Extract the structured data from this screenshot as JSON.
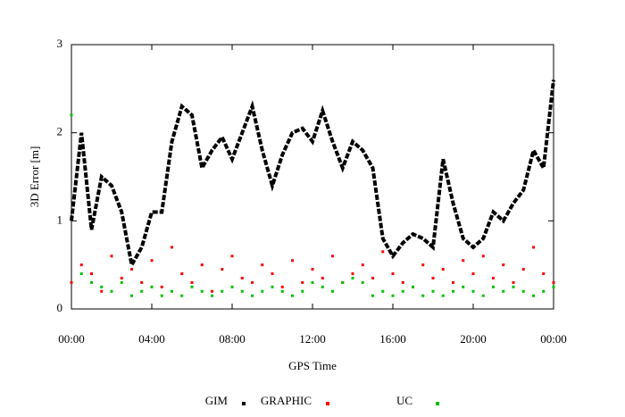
{
  "chart_data": {
    "type": "scatter",
    "xlabel": "GPS Time",
    "ylabel": "3D Error [m]",
    "x": [
      0,
      0.5,
      1,
      1.5,
      2,
      2.5,
      3,
      3.5,
      4,
      4.5,
      5,
      5.5,
      6,
      6.5,
      7,
      7.5,
      8,
      8.5,
      9,
      9.5,
      10,
      10.5,
      11,
      11.5,
      12,
      12.5,
      13,
      13.5,
      14,
      14.5,
      15,
      15.5,
      16,
      16.5,
      17,
      17.5,
      18,
      18.5,
      19,
      19.5,
      20,
      20.5,
      21,
      21.5,
      22,
      22.5,
      23,
      23.5,
      24
    ],
    "series": [
      {
        "name": "GIM",
        "color": "#000000",
        "style": "line",
        "values": [
          1.0,
          2.0,
          0.9,
          1.5,
          1.4,
          1.1,
          0.5,
          0.7,
          1.1,
          1.1,
          1.9,
          2.3,
          2.2,
          1.6,
          1.8,
          1.95,
          1.7,
          2.0,
          2.3,
          1.8,
          1.4,
          1.75,
          2.0,
          2.05,
          1.9,
          2.25,
          1.9,
          1.6,
          1.9,
          1.8,
          1.6,
          0.8,
          0.6,
          0.75,
          0.85,
          0.8,
          0.7,
          1.7,
          1.2,
          0.8,
          0.7,
          0.8,
          1.1,
          1.0,
          1.2,
          1.35,
          1.8,
          1.6,
          2.6
        ]
      },
      {
        "name": "GRAPHIC",
        "color": "#ff0000",
        "style": "points",
        "values": [
          0.3,
          0.5,
          0.4,
          0.2,
          0.6,
          0.35,
          0.45,
          0.3,
          0.55,
          0.25,
          0.7,
          0.4,
          0.3,
          0.5,
          0.2,
          0.45,
          0.6,
          0.35,
          0.3,
          0.5,
          0.4,
          0.25,
          0.55,
          0.3,
          0.45,
          0.35,
          0.6,
          0.3,
          0.4,
          0.5,
          0.35,
          0.65,
          0.4,
          0.3,
          0.25,
          0.5,
          0.35,
          0.45,
          0.3,
          0.55,
          0.4,
          0.6,
          0.35,
          0.5,
          0.3,
          0.45,
          0.7,
          0.4,
          0.3
        ]
      },
      {
        "name": "UC",
        "color": "#00c000",
        "style": "points",
        "values": [
          2.2,
          0.4,
          0.3,
          0.25,
          0.2,
          0.3,
          0.15,
          0.2,
          0.25,
          0.15,
          0.2,
          0.15,
          0.25,
          0.2,
          0.15,
          0.2,
          0.25,
          0.2,
          0.15,
          0.2,
          0.25,
          0.2,
          0.15,
          0.2,
          0.3,
          0.25,
          0.2,
          0.3,
          0.35,
          0.3,
          0.15,
          0.2,
          0.15,
          0.2,
          0.25,
          0.15,
          0.2,
          0.15,
          0.2,
          0.25,
          0.2,
          0.15,
          0.25,
          0.2,
          0.25,
          0.2,
          0.15,
          0.2,
          0.25
        ]
      }
    ],
    "xlim": [
      0,
      24
    ],
    "xticks": [
      {
        "value": 0,
        "label": "00:00"
      },
      {
        "value": 4,
        "label": "04:00"
      },
      {
        "value": 8,
        "label": "08:00"
      },
      {
        "value": 12,
        "label": "12:00"
      },
      {
        "value": 16,
        "label": "16:00"
      },
      {
        "value": 20,
        "label": "20:00"
      },
      {
        "value": 24,
        "label": "00:00"
      }
    ],
    "ylim": [
      0,
      3
    ],
    "yticks": [
      0,
      1,
      2,
      3
    ],
    "legend": "bottom"
  }
}
